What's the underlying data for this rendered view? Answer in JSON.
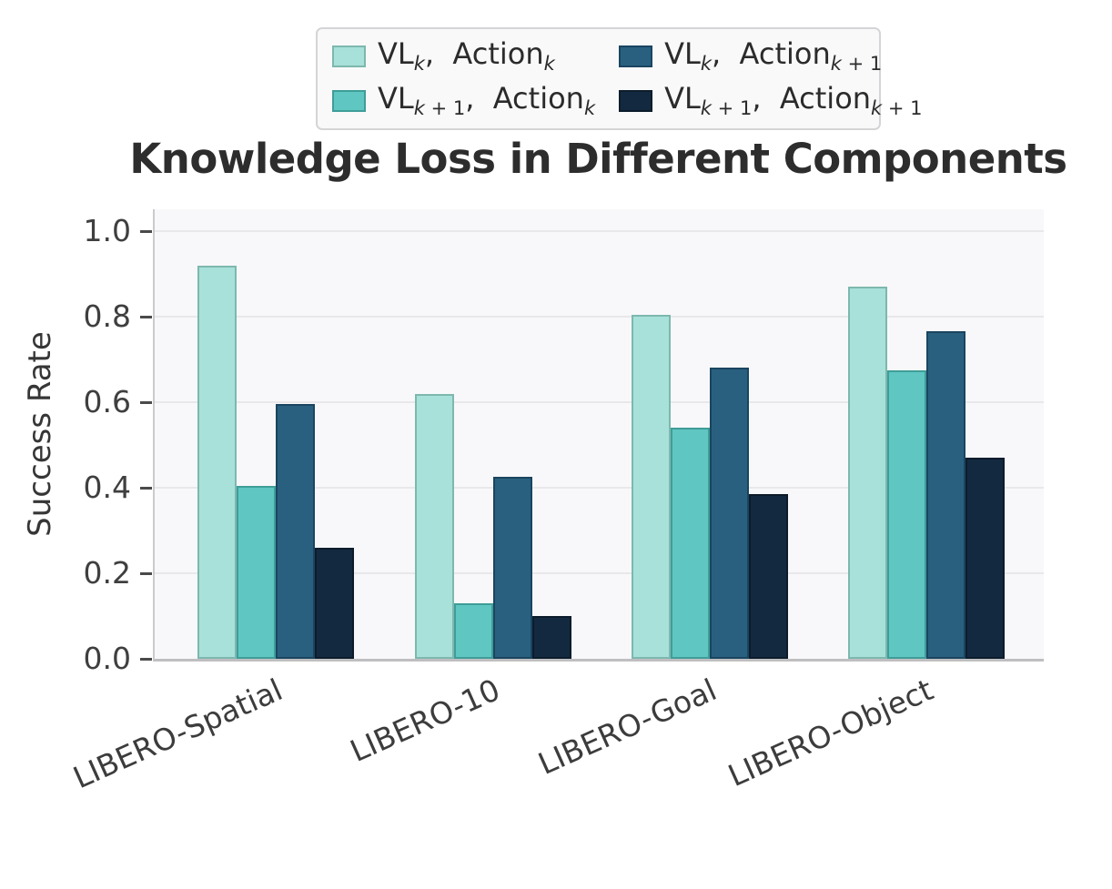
{
  "chart_data": {
    "type": "bar",
    "title": "Knowledge Loss in Different Components",
    "xlabel": "",
    "ylabel": "Success Rate",
    "categories": [
      "LIBERO-Spatial",
      "LIBERO-10",
      "LIBERO-Goal",
      "LIBERO-Object"
    ],
    "series": [
      {
        "name": "VL_k, Action_k",
        "values": [
          0.92,
          0.62,
          0.805,
          0.87
        ],
        "fill": "#a8e1d9",
        "edge": "#7db8ae"
      },
      {
        "name": "VL_k+1, Action_k",
        "values": [
          0.405,
          0.13,
          0.54,
          0.675
        ],
        "fill": "#5fc6c2",
        "edge": "#3f9d98"
      },
      {
        "name": "VL_k, Action_k+1",
        "values": [
          0.595,
          0.425,
          0.68,
          0.765
        ],
        "fill": "#29607f",
        "edge": "#1a4560"
      },
      {
        "name": "VL_k+1, Action_k+1",
        "values": [
          0.26,
          0.1,
          0.385,
          0.47
        ],
        "fill": "#132940",
        "edge": "#0c1c2b"
      }
    ],
    "ylim": [
      0.0,
      1.045
    ],
    "yticks": [
      "0.0",
      "0.2",
      "0.4",
      "0.6",
      "0.8",
      "1.0"
    ],
    "grid": "horizontal",
    "legend_position": "top",
    "plot_background": "#f8f8fa",
    "gridline_color": "#e8e8ea"
  },
  "legend": {
    "items": [
      {
        "series": 0,
        "segments": [
          {
            "t": "VL"
          },
          {
            "si": "k"
          },
          {
            "t": ",  Action"
          },
          {
            "si": "k"
          }
        ]
      },
      {
        "series": 1,
        "segments": [
          {
            "t": "VL"
          },
          {
            "si": "k",
            "sr": " + 1"
          },
          {
            "t": ",  Action"
          },
          {
            "si": "k"
          }
        ]
      },
      {
        "series": 2,
        "segments": [
          {
            "t": "VL"
          },
          {
            "si": "k"
          },
          {
            "t": ",  Action"
          },
          {
            "si": "k",
            "sr": " + 1"
          }
        ]
      },
      {
        "series": 3,
        "segments": [
          {
            "t": "VL"
          },
          {
            "si": "k",
            "sr": " + 1"
          },
          {
            "t": ",  Action"
          },
          {
            "si": "k",
            "sr": " + 1"
          }
        ]
      }
    ]
  }
}
